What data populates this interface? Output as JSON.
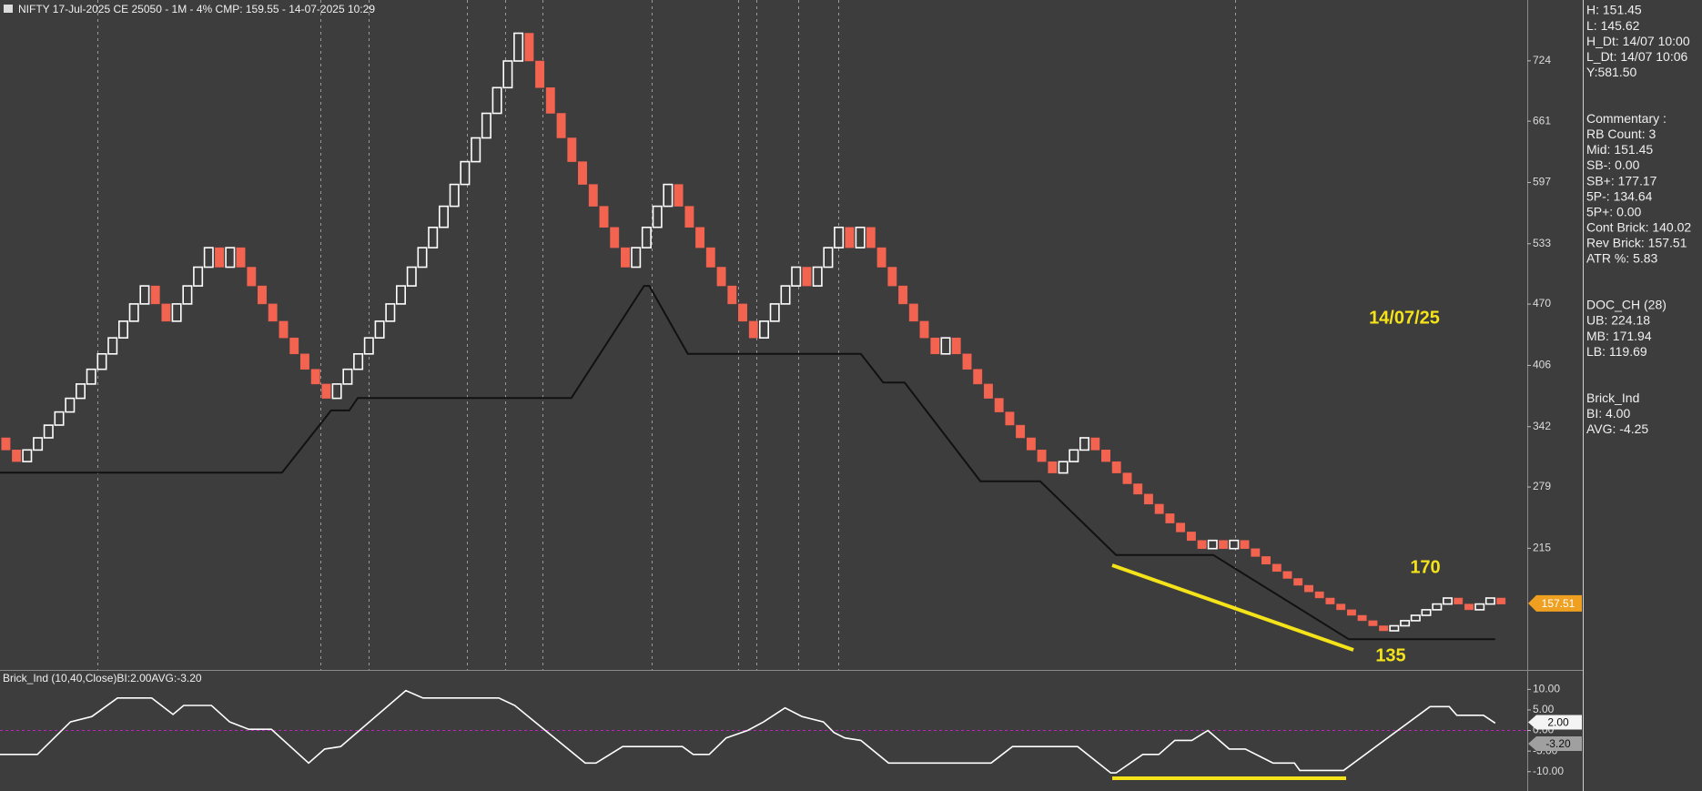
{
  "chart_data": [
    {
      "type": "renko",
      "title": "NIFTY 17-Jul-2025 CE 25050 - 1M - 4% CMP: 159.55 - 14-07-2025 10:29",
      "open": [
        330.4,
        317.7,
        305.5,
        317.7,
        330.4,
        343.6,
        357.3,
        371.6,
        386.5,
        401.9,
        418.0,
        434.7,
        452.1,
        470.2,
        489.0,
        470.2,
        452.1,
        470.2,
        489.0,
        508.6,
        528.9,
        508.6,
        528.9,
        508.6,
        489.0,
        470.2,
        452.1,
        434.7,
        418.0,
        401.9,
        386.5,
        371.6,
        386.5,
        401.9,
        418.0,
        434.7,
        452.1,
        470.2,
        489.0,
        508.6,
        528.9,
        550.1,
        572.1,
        594.9,
        618.7,
        643.5,
        669.2,
        696.0,
        723.8,
        752.8,
        723.8,
        696.0,
        669.2,
        643.5,
        618.7,
        594.9,
        572.1,
        550.1,
        528.9,
        508.6,
        528.9,
        550.1,
        572.1,
        594.9,
        572.1,
        550.1,
        528.9,
        508.6,
        489.0,
        470.2,
        452.1,
        434.7,
        452.1,
        470.2,
        489.0,
        508.6,
        489.0,
        508.6,
        528.9,
        550.1,
        528.9,
        550.1,
        528.9,
        508.6,
        489.0,
        470.2,
        452.1,
        434.7,
        418.0,
        434.7,
        418.0,
        401.9,
        386.5,
        371.6,
        357.3,
        343.6,
        330.4,
        317.7,
        305.5,
        293.7,
        305.5,
        317.7,
        330.4,
        317.7,
        305.5,
        293.7,
        282.4,
        271.6,
        261.1,
        251.1,
        241.4,
        232.1,
        223.2,
        214.6,
        223.2,
        214.6,
        223.2,
        214.6,
        206.4,
        198.4,
        190.8,
        183.5,
        176.4,
        169.6,
        163.1,
        156.8,
        150.8,
        145.0,
        139.4,
        134.1,
        128.9,
        134.1,
        139.4,
        145.0,
        150.8,
        156.8,
        163.1,
        156.8,
        150.8,
        156.8,
        163.1
      ],
      "close": [
        317.7,
        305.5,
        317.7,
        330.4,
        343.6,
        357.3,
        371.6,
        386.5,
        401.9,
        418.0,
        434.7,
        452.1,
        470.2,
        489.0,
        470.2,
        452.1,
        470.2,
        489.0,
        508.6,
        528.9,
        508.6,
        528.9,
        508.6,
        489.0,
        470.2,
        452.1,
        434.7,
        418.0,
        401.9,
        386.5,
        371.6,
        386.5,
        401.9,
        418.0,
        434.7,
        452.1,
        470.2,
        489.0,
        508.6,
        528.9,
        550.1,
        572.1,
        594.9,
        618.7,
        643.5,
        669.2,
        696.0,
        723.8,
        752.8,
        723.8,
        696.0,
        669.2,
        643.5,
        618.7,
        594.9,
        572.1,
        550.1,
        528.9,
        508.6,
        528.9,
        550.1,
        572.1,
        594.9,
        572.1,
        550.1,
        528.9,
        508.6,
        489.0,
        470.2,
        452.1,
        434.7,
        452.1,
        470.2,
        489.0,
        508.6,
        489.0,
        508.6,
        528.9,
        550.1,
        528.9,
        550.1,
        528.9,
        508.6,
        489.0,
        470.2,
        452.1,
        434.7,
        418.0,
        434.7,
        418.0,
        401.9,
        386.5,
        371.6,
        357.3,
        343.6,
        330.4,
        317.7,
        305.5,
        293.7,
        305.5,
        317.7,
        330.4,
        317.7,
        305.5,
        293.7,
        282.4,
        271.6,
        261.1,
        251.1,
        241.4,
        232.1,
        223.2,
        214.6,
        223.2,
        214.6,
        223.2,
        214.6,
        206.4,
        198.4,
        190.8,
        183.5,
        176.4,
        169.6,
        163.1,
        156.8,
        150.8,
        145.0,
        139.4,
        134.1,
        128.9,
        134.1,
        139.4,
        145.0,
        150.8,
        156.8,
        163.1,
        156.8,
        150.8,
        156.8,
        163.1,
        156.8
      ],
      "up_color": "#3d3d3d",
      "up_stroke": "#ffffff",
      "down_color": "#f26350",
      "stop_line": {
        "color": "#111111",
        "x": [
          0,
          26.4,
          31,
          32.7,
          33.5,
          53.5,
          60.3,
          60.8,
          64.4,
          80.6,
          82.7,
          84.7,
          91.8,
          97.4,
          104.5,
          113.6,
          126.3,
          140
        ],
        "values": [
          294,
          294,
          359,
          359,
          372,
          372,
          489,
          489,
          418,
          418,
          388,
          388,
          285,
          285,
          208,
          208,
          120,
          120
        ]
      },
      "last_price": 157.51,
      "last_price_color": "#f0a020",
      "annotations": [
        "14/07/25",
        "170",
        "135"
      ],
      "xlim": [
        0,
        143
      ],
      "ylim": [
        88,
        787.5
      ],
      "yticks": [
        215,
        279,
        342,
        406,
        470,
        533,
        597,
        661,
        724
      ]
    },
    {
      "type": "line",
      "title": "Brick_Ind (10,40,Close)BI:2.00AVG:-3.20",
      "color": "#ffffff",
      "x": [
        0,
        3.5,
        6.6,
        8.6,
        11.0,
        14.2,
        16.2,
        17.2,
        19.8,
        21.5,
        23.3,
        25.4,
        28.9,
        30.4,
        31.9,
        38.0,
        39.6,
        46.7,
        48.2,
        54.8,
        55.8,
        58.3,
        63.9,
        64.9,
        66.4,
        68.0,
        70.0,
        71.5,
        73.5,
        75.1,
        77.1,
        78.1,
        79.1,
        80.6,
        83.2,
        92.8,
        94.8,
        100.9,
        104.0,
        104.5,
        107.0,
        108.5,
        110.0,
        111.6,
        113.1,
        115.1,
        116.6,
        119.2,
        121.2,
        121.7,
        125.8,
        133.9,
        135.7,
        136.4,
        138.9,
        140.0
      ],
      "values": [
        -5.8,
        -5.8,
        2.1,
        3.4,
        7.9,
        7.9,
        3.9,
        6.1,
        6.1,
        2.1,
        0.3,
        0.3,
        -7.9,
        -4.5,
        -3.9,
        9.7,
        7.9,
        7.9,
        6.1,
        -7.9,
        -7.9,
        -3.9,
        -3.9,
        -5.8,
        -5.8,
        -1.8,
        0,
        2.1,
        5.5,
        3.4,
        2.1,
        -0.5,
        -1.8,
        -2.4,
        -7.9,
        -7.9,
        -3.9,
        -3.9,
        -10.3,
        -10.3,
        -5.8,
        -5.8,
        -2.4,
        -2.4,
        0,
        -4.5,
        -4.5,
        -7.9,
        -7.9,
        -9.7,
        -9.7,
        5.8,
        5.8,
        3.7,
        3.7,
        1.8
      ],
      "hline": 0,
      "hline_color": "#c020c0",
      "value_tags": [
        {
          "value": 2,
          "label": "2.00"
        },
        {
          "value": -3.2,
          "label": "-3.20"
        }
      ],
      "xlim": [
        0,
        143
      ],
      "ylim": [
        -14.7,
        14.5
      ],
      "yticks": [
        {
          "value": 10,
          "label": "10.00"
        },
        {
          "value": 5,
          "label": "5.00"
        },
        {
          "value": 0,
          "label": "0.00"
        },
        {
          "value": -5,
          "label": "-5.00"
        },
        {
          "value": -10,
          "label": "-10.00"
        }
      ]
    }
  ],
  "info_panel": {
    "groups": [
      [
        "H: 151.45",
        "L: 145.62",
        "H_Dt: 14/07 10:00",
        "L_Dt: 14/07 10:06",
        "Y:581.50"
      ],
      [
        "Commentary :",
        "RB Count: 3",
        "Mid: 151.45",
        "SB-: 0.00",
        "SB+: 177.17",
        "5P-: 134.64",
        "5P+: 0.00",
        "Cont Brick: 140.02",
        "Rev Brick: 157.51",
        "ATR %: 5.83"
      ],
      [
        "DOC_CH (28)",
        "UB: 224.18",
        "MB: 171.94",
        "LB: 119.69"
      ],
      [
        "Brick_Ind",
        "BI: 4.00",
        "AVG: -4.25"
      ]
    ]
  }
}
